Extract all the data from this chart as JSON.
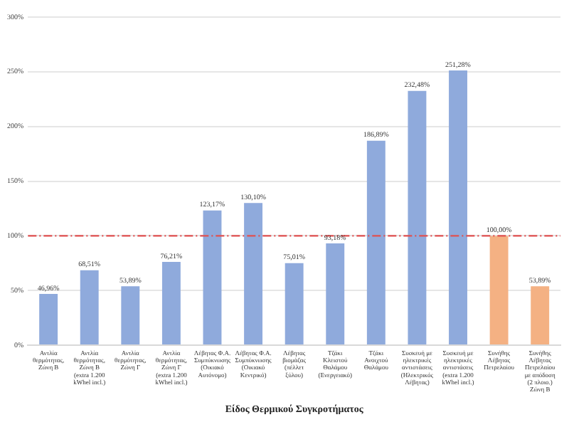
{
  "chart_data": {
    "type": "bar",
    "xlabel": "Είδος Θερμικού Συγκροτήματος",
    "categories": [
      "Αντλία θερμότητας, Ζώνη Β",
      "Αντλία θερμότητας, Ζώνη Β (extra 1.200 kWhel incl.)",
      "Αντλία θερμότητας, Ζώνη Γ",
      "Αντλία θερμότητας, Ζώνη Γ (extra 1.200 kWhel incl.)",
      "Λέβητας Φ.Α. Συμπύκνωσης (Οικιακό Αυτόνομο)",
      "Λέβητας Φ.Α. Συμπύκνωσης (Οικιακό Κεντρικό)",
      "Λέβητας βιομάζας (πέλλετ ξύλου)",
      "Τζάκι Κλειστού Θαλάμου (Ενεργειακό)",
      "Τζάκι Ανοιχτού Θαλάμου",
      "Συσκευή με ηλεκτρικές αντιστάσεις (Ηλεκτρικός Λέβητας)",
      "Συσκευή με ηλεκτρικές αντιστάσεις (extra 1.200 kWhel incl.)",
      "Συνήθης Λέβητας Πετρελαίου",
      "Συνήθης Λέβητας Πετρελαίου με απόδοση (2 πλοιο.) Ζώνη Β"
    ],
    "values": [
      46.96,
      68.51,
      53.89,
      76.21,
      123.17,
      130.1,
      75.01,
      93.18,
      186.89,
      232.48,
      251.28,
      100.0,
      53.89
    ],
    "value_labels": [
      "46,96%",
      "68,51%",
      "53,89%",
      "76,21%",
      "123,17%",
      "130,10%",
      "75,01%",
      "93,18%",
      "186,89%",
      "232,48%",
      "251,28%",
      "100,00%",
      "53,89%"
    ],
    "colors": [
      "#8faadc",
      "#8faadc",
      "#8faadc",
      "#8faadc",
      "#8faadc",
      "#8faadc",
      "#8faadc",
      "#8faadc",
      "#8faadc",
      "#8faadc",
      "#8faadc",
      "#f4b183",
      "#f4b183"
    ],
    "ylim": [
      0,
      300
    ],
    "yticks": [
      {
        "value": 0,
        "label": "0%"
      },
      {
        "value": 50,
        "label": "50%"
      },
      {
        "value": 100,
        "label": "100%"
      },
      {
        "value": 150,
        "label": "150%"
      },
      {
        "value": 200,
        "label": "200%"
      },
      {
        "value": 250,
        "label": "250%"
      },
      {
        "value": 300,
        "label": "300%"
      }
    ],
    "grid": "y",
    "legend": false,
    "ref_lines": [
      {
        "axis": "y",
        "value": 100,
        "color": "#e05050",
        "line_style": "dashdot"
      }
    ]
  }
}
